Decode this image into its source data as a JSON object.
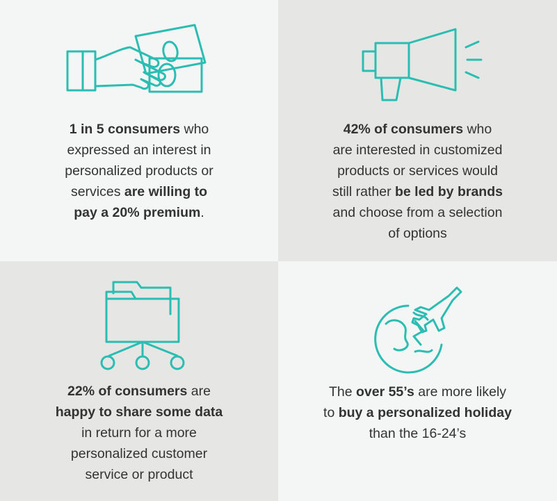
{
  "colors": {
    "accent": "#2bbdb2",
    "light_panel": "#f4f5f5",
    "dark_panel": "#e6e6e5",
    "text": "#333333"
  },
  "cells": [
    {
      "icon": "hand-money-icon",
      "lines": [
        [
          {
            "t": "1 in 5 consumers",
            "b": true
          },
          {
            "t": " who",
            "b": false
          }
        ],
        [
          {
            "t": "expressed an interest in",
            "b": false
          }
        ],
        [
          {
            "t": "personalized products or",
            "b": false
          }
        ],
        [
          {
            "t": "services ",
            "b": false
          },
          {
            "t": "are willing to",
            "b": true
          }
        ],
        [
          {
            "t": "pay a 20% premium",
            "b": true
          },
          {
            "t": ".",
            "b": false
          }
        ]
      ]
    },
    {
      "icon": "megaphone-icon",
      "lines": [
        [
          {
            "t": "42% of consumers",
            "b": true
          },
          {
            "t": " who",
            "b": false
          }
        ],
        [
          {
            "t": "are interested in customized",
            "b": false
          }
        ],
        [
          {
            "t": "products or services would",
            "b": false
          }
        ],
        [
          {
            "t": "still rather ",
            "b": false
          },
          {
            "t": "be led by brands",
            "b": true
          }
        ],
        [
          {
            "t": "and choose from a selection",
            "b": false
          }
        ],
        [
          {
            "t": "of options",
            "b": false
          }
        ]
      ]
    },
    {
      "icon": "folder-network-icon",
      "lines": [
        [
          {
            "t": "22% of consumers",
            "b": true
          },
          {
            "t": " are",
            "b": false
          }
        ],
        [
          {
            "t": "happy to share some data",
            "b": true
          }
        ],
        [
          {
            "t": "in return for a more",
            "b": false
          }
        ],
        [
          {
            "t": "personalized customer",
            "b": false
          }
        ],
        [
          {
            "t": "service or product",
            "b": false
          }
        ]
      ]
    },
    {
      "icon": "globe-plane-icon",
      "lines": [
        [
          {
            "t": "The ",
            "b": false
          },
          {
            "t": "over 55’s",
            "b": true
          },
          {
            "t": " are more likely",
            "b": false
          }
        ],
        [
          {
            "t": "to ",
            "b": false
          },
          {
            "t": "buy a personalized holiday",
            "b": true
          }
        ],
        [
          {
            "t": "than the 16-24’s",
            "b": false
          }
        ]
      ]
    }
  ]
}
